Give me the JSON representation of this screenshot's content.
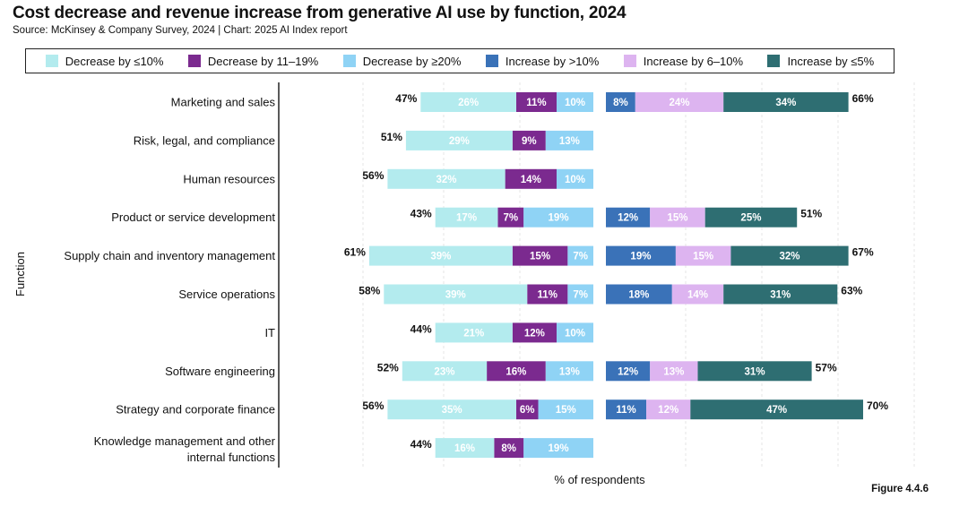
{
  "header": {
    "title": "Cost decrease and revenue increase from generative AI use by function, 2024",
    "subtitle": "Source: McKinsey & Company Survey, 2024 | Chart: 2025 AI Index report",
    "figure": "Figure 4.4.6"
  },
  "legend": [
    {
      "label": "Decrease by ≤10%",
      "color": "#b3ebee"
    },
    {
      "label": "Decrease by 11–19%",
      "color": "#7b2a8f"
    },
    {
      "label": "Decrease by ≥20%",
      "color": "#8fd3f5"
    },
    {
      "label": "Increase by >10%",
      "color": "#3a72b8"
    },
    {
      "label": "Increase by 6–10%",
      "color": "#ddb4f0"
    },
    {
      "label": "Increase by ≤5%",
      "color": "#2e6e72"
    }
  ],
  "chart_data": {
    "type": "bar",
    "ylabel": "Function",
    "xlabel": "% of respondents",
    "categories": [
      "Marketing and sales",
      "Risk, legal, and compliance",
      "Human resources",
      "Product or service development",
      "Supply chain and inventory management",
      "Service operations",
      "IT",
      "Software engineering",
      "Strategy and corporate finance",
      "Knowledge management and other internal functions"
    ],
    "cost_decrease": {
      "series": [
        {
          "name": "Decrease by ≤10%",
          "values": [
            26,
            29,
            32,
            17,
            39,
            39,
            21,
            23,
            35,
            16
          ]
        },
        {
          "name": "Decrease by 11–19%",
          "values": [
            11,
            9,
            14,
            7,
            15,
            11,
            12,
            16,
            6,
            8
          ]
        },
        {
          "name": "Decrease by ≥20%",
          "values": [
            10,
            13,
            10,
            19,
            7,
            7,
            10,
            13,
            15,
            19
          ]
        }
      ],
      "totals": [
        47,
        51,
        56,
        43,
        61,
        58,
        44,
        52,
        56,
        44
      ]
    },
    "revenue_increase": {
      "series": [
        {
          "name": "Increase by >10%",
          "values": [
            8,
            null,
            null,
            12,
            19,
            18,
            null,
            12,
            11,
            null
          ]
        },
        {
          "name": "Increase by 6–10%",
          "values": [
            24,
            null,
            null,
            15,
            15,
            14,
            null,
            13,
            12,
            null
          ]
        },
        {
          "name": "Increase by ≤5%",
          "values": [
            34,
            null,
            null,
            25,
            32,
            31,
            null,
            31,
            47,
            null
          ]
        }
      ],
      "totals": [
        66,
        null,
        null,
        51,
        67,
        63,
        null,
        57,
        70,
        null
      ]
    }
  }
}
